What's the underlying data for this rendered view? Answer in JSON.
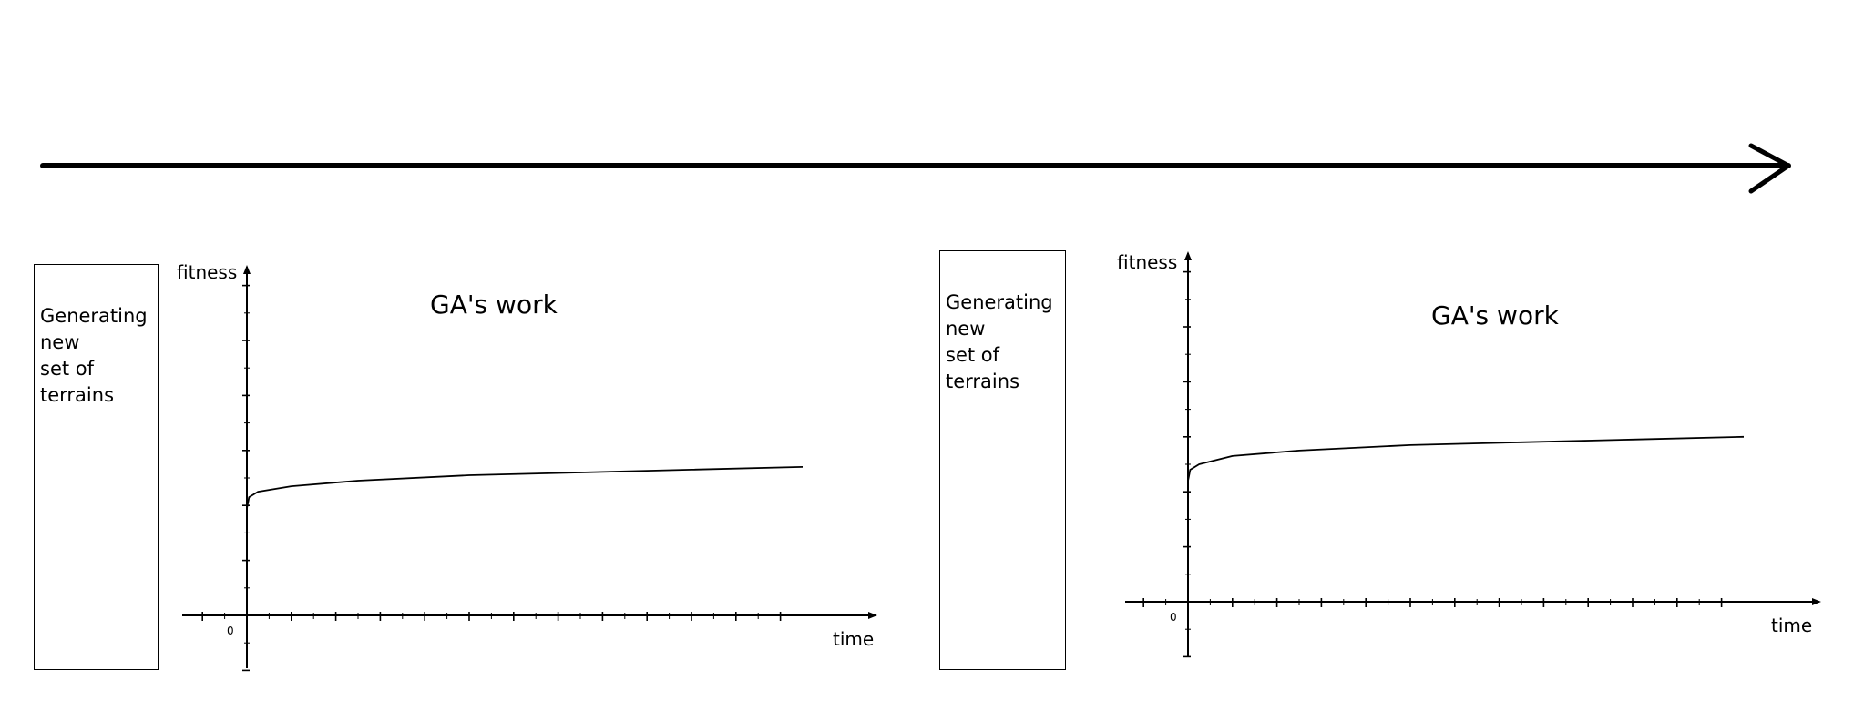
{
  "panels": [
    {
      "box_lines": [
        "Generating",
        "new",
        "set of",
        "terrains"
      ],
      "ylabel": "fitness",
      "xlabel": "time",
      "origin_label": "0",
      "title": "GA's work"
    },
    {
      "box_lines": [
        "Generating",
        "new",
        "set of",
        "terrains"
      ],
      "ylabel": "fitness",
      "xlabel": "time",
      "origin_label": "0",
      "title": "GA's work"
    }
  ],
  "chart_data": [
    {
      "type": "line",
      "title": "GA's work",
      "xlabel": "time",
      "ylabel": "fitness",
      "x_tick_labels": [
        "0"
      ],
      "grid": false,
      "series": [
        {
          "x": [
            0,
            0.1,
            0.5,
            2,
            5,
            10,
            15,
            20,
            25
          ],
          "y": [
            3.9,
            4.3,
            4.5,
            4.7,
            4.9,
            5.1,
            5.2,
            5.3,
            5.4
          ]
        }
      ],
      "xlim": [
        -2.5,
        25
      ],
      "ylim": [
        -2,
        13
      ]
    },
    {
      "type": "line",
      "title": "GA's work",
      "xlabel": "time",
      "ylabel": "fitness",
      "x_tick_labels": [
        "0"
      ],
      "grid": false,
      "series": [
        {
          "x": [
            0,
            0.1,
            0.5,
            2,
            5,
            10,
            15,
            20,
            25
          ],
          "y": [
            4.4,
            4.8,
            5.0,
            5.3,
            5.5,
            5.7,
            5.8,
            5.9,
            6.0
          ]
        }
      ],
      "xlim": [
        -2.5,
        25
      ],
      "ylim": [
        -2,
        13
      ]
    }
  ]
}
